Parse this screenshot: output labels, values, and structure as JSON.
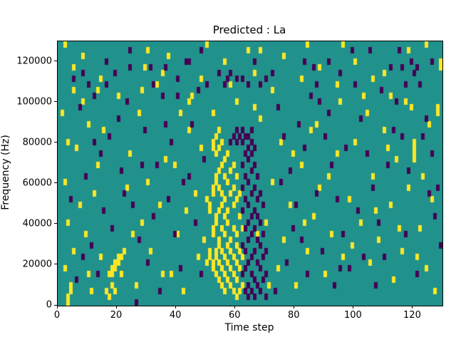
{
  "title": "Predicted : La",
  "chart_data": {
    "type": "heatmap",
    "title": "Predicted : La",
    "xlabel": "Time step",
    "ylabel": "Frequency (Hz)",
    "x_range": [
      0,
      130
    ],
    "y_range": [
      0,
      130000
    ],
    "x_ticks": [
      0,
      20,
      40,
      60,
      80,
      100,
      120
    ],
    "y_ticks": [
      0,
      20000,
      40000,
      60000,
      80000,
      100000,
      120000
    ],
    "grid_cols": 130,
    "grid_rows": 46,
    "legend": "none",
    "grid": false,
    "colors": {
      "background": "#21918c",
      "high": "#fde725",
      "low": "#440154"
    },
    "cells_high": [
      [
        3,
        0
      ],
      [
        3,
        1
      ],
      [
        4,
        2
      ],
      [
        4,
        3
      ],
      [
        2,
        6
      ],
      [
        5,
        9
      ],
      [
        3,
        14
      ],
      [
        2,
        21
      ],
      [
        3,
        28
      ],
      [
        9,
        12
      ],
      [
        12,
        19
      ],
      [
        13,
        24
      ],
      [
        10,
        31
      ],
      [
        8,
        35
      ],
      [
        6,
        27
      ],
      [
        14,
        8
      ],
      [
        11,
        2
      ],
      [
        7,
        17
      ],
      [
        1,
        33
      ],
      [
        5,
        41
      ],
      [
        10,
        5
      ],
      [
        15,
        30
      ],
      [
        13,
        37
      ],
      [
        16,
        2
      ],
      [
        17,
        5
      ],
      [
        18,
        5
      ],
      [
        18,
        6
      ],
      [
        19,
        6
      ],
      [
        19,
        7
      ],
      [
        20,
        7
      ],
      [
        20,
        8
      ],
      [
        21,
        5
      ],
      [
        21,
        8
      ],
      [
        18,
        3
      ],
      [
        22,
        9
      ],
      [
        17,
        1
      ],
      [
        19,
        2
      ],
      [
        26,
        3
      ],
      [
        28,
        14
      ],
      [
        30,
        21
      ],
      [
        24,
        26
      ],
      [
        27,
        33
      ],
      [
        31,
        9
      ],
      [
        34,
        17
      ],
      [
        36,
        25
      ],
      [
        38,
        5
      ],
      [
        40,
        12
      ],
      [
        42,
        2
      ],
      [
        44,
        30
      ],
      [
        46,
        19
      ],
      [
        33,
        38
      ],
      [
        29,
        41
      ],
      [
        25,
        12
      ],
      [
        35,
        5
      ],
      [
        39,
        24
      ],
      [
        43,
        16
      ],
      [
        47,
        8
      ],
      [
        23,
        20
      ],
      [
        45,
        36
      ],
      [
        48,
        27
      ],
      [
        41,
        33
      ],
      [
        49,
        11
      ],
      [
        50,
        7
      ],
      [
        50,
        18
      ],
      [
        51,
        8
      ],
      [
        51,
        9
      ],
      [
        51,
        16
      ],
      [
        51,
        17
      ],
      [
        52,
        6
      ],
      [
        52,
        7
      ],
      [
        52,
        12
      ],
      [
        52,
        13
      ],
      [
        52,
        19
      ],
      [
        52,
        20
      ],
      [
        52,
        27
      ],
      [
        52,
        28
      ],
      [
        53,
        5
      ],
      [
        53,
        8
      ],
      [
        53,
        9
      ],
      [
        53,
        14
      ],
      [
        53,
        15
      ],
      [
        53,
        21
      ],
      [
        53,
        22
      ],
      [
        53,
        26
      ],
      [
        53,
        29
      ],
      [
        54,
        4
      ],
      [
        54,
        7
      ],
      [
        54,
        10
      ],
      [
        54,
        11
      ],
      [
        54,
        16
      ],
      [
        54,
        20
      ],
      [
        54,
        23
      ],
      [
        54,
        27
      ],
      [
        54,
        30
      ],
      [
        55,
        3
      ],
      [
        55,
        6
      ],
      [
        55,
        9
      ],
      [
        55,
        13
      ],
      [
        55,
        17
      ],
      [
        55,
        19
      ],
      [
        55,
        24
      ],
      [
        55,
        28
      ],
      [
        56,
        2
      ],
      [
        56,
        5
      ],
      [
        56,
        8
      ],
      [
        56,
        12
      ],
      [
        56,
        15
      ],
      [
        56,
        18
      ],
      [
        56,
        22
      ],
      [
        56,
        25
      ],
      [
        57,
        4
      ],
      [
        57,
        7
      ],
      [
        57,
        10
      ],
      [
        57,
        14
      ],
      [
        57,
        16
      ],
      [
        57,
        21
      ],
      [
        57,
        26
      ],
      [
        58,
        3
      ],
      [
        58,
        6
      ],
      [
        58,
        9
      ],
      [
        58,
        11
      ],
      [
        58,
        19
      ],
      [
        58,
        23
      ],
      [
        59,
        2
      ],
      [
        59,
        5
      ],
      [
        59,
        8
      ],
      [
        59,
        13
      ],
      [
        59,
        17
      ],
      [
        59,
        20
      ],
      [
        59,
        24
      ],
      [
        60,
        1
      ],
      [
        60,
        4
      ],
      [
        60,
        7
      ],
      [
        60,
        10
      ],
      [
        60,
        12
      ],
      [
        60,
        18
      ],
      [
        60,
        22
      ],
      [
        61,
        2
      ],
      [
        61,
        6
      ],
      [
        61,
        9
      ],
      [
        61,
        15
      ],
      [
        61,
        19
      ],
      [
        62,
        3
      ],
      [
        62,
        8
      ],
      [
        62,
        13
      ],
      [
        68,
        32
      ],
      [
        70,
        14
      ],
      [
        72,
        21
      ],
      [
        74,
        6
      ],
      [
        75,
        28
      ],
      [
        76,
        11
      ],
      [
        78,
        17
      ],
      [
        80,
        3
      ],
      [
        82,
        24
      ],
      [
        84,
        9
      ],
      [
        85,
        30
      ],
      [
        86,
        15
      ],
      [
        88,
        20
      ],
      [
        90,
        5
      ],
      [
        92,
        12
      ],
      [
        94,
        26
      ],
      [
        95,
        35
      ],
      [
        96,
        8
      ],
      [
        98,
        18
      ],
      [
        100,
        28
      ],
      [
        102,
        14
      ],
      [
        104,
        33
      ],
      [
        105,
        7
      ],
      [
        106,
        22
      ],
      [
        108,
        11
      ],
      [
        110,
        30
      ],
      [
        112,
        17
      ],
      [
        113,
        4
      ],
      [
        114,
        25
      ],
      [
        116,
        9
      ],
      [
        118,
        20
      ],
      [
        119,
        34
      ],
      [
        120,
        25
      ],
      [
        120,
        26
      ],
      [
        120,
        27
      ],
      [
        120,
        28
      ],
      [
        122,
        13
      ],
      [
        124,
        6
      ],
      [
        125,
        31
      ],
      [
        126,
        18
      ],
      [
        128,
        33
      ],
      [
        128,
        34
      ],
      [
        129,
        41
      ],
      [
        129,
        42
      ],
      [
        127,
        2
      ],
      [
        123,
        22
      ],
      [
        66,
        34
      ],
      [
        71,
        3
      ],
      [
        79,
        26
      ],
      [
        83,
        14
      ],
      [
        87,
        31
      ],
      [
        91,
        22
      ],
      [
        99,
        10
      ],
      [
        103,
        36
      ],
      [
        107,
        16
      ],
      [
        111,
        27
      ],
      [
        115,
        13
      ],
      [
        117,
        35
      ],
      [
        121,
        8
      ],
      [
        67,
        12
      ],
      [
        35,
        40
      ],
      [
        37,
        43
      ],
      [
        48,
        39
      ],
      [
        56,
        42
      ],
      [
        58,
        38
      ],
      [
        64,
        44
      ],
      [
        66,
        40
      ],
      [
        72,
        37
      ],
      [
        76,
        43
      ],
      [
        82,
        39
      ],
      [
        88,
        41
      ],
      [
        94,
        38
      ],
      [
        100,
        42
      ],
      [
        106,
        39
      ],
      [
        112,
        36
      ],
      [
        118,
        44
      ],
      [
        20,
        36
      ],
      [
        14,
        39
      ],
      [
        8,
        43
      ],
      [
        28,
        37
      ],
      [
        44,
        35
      ],
      [
        52,
        33
      ],
      [
        60,
        35
      ],
      [
        68,
        44
      ],
      [
        5,
        37
      ],
      [
        96,
        45
      ],
      [
        110,
        40
      ],
      [
        124,
        45
      ],
      [
        2,
        45
      ],
      [
        30,
        44
      ],
      [
        84,
        45
      ],
      [
        50,
        45
      ]
    ],
    "cells_low": [
      [
        62,
        5
      ],
      [
        62,
        10
      ],
      [
        62,
        16
      ],
      [
        62,
        20
      ],
      [
        62,
        24
      ],
      [
        63,
        2
      ],
      [
        63,
        6
      ],
      [
        63,
        9
      ],
      [
        63,
        13
      ],
      [
        63,
        18
      ],
      [
        63,
        22
      ],
      [
        63,
        26
      ],
      [
        64,
        1
      ],
      [
        64,
        3
      ],
      [
        64,
        7
      ],
      [
        64,
        11
      ],
      [
        64,
        14
      ],
      [
        64,
        17
      ],
      [
        64,
        21
      ],
      [
        64,
        25
      ],
      [
        64,
        27
      ],
      [
        65,
        2
      ],
      [
        65,
        5
      ],
      [
        65,
        8
      ],
      [
        65,
        12
      ],
      [
        65,
        15
      ],
      [
        65,
        19
      ],
      [
        65,
        23
      ],
      [
        65,
        26
      ],
      [
        65,
        28
      ],
      [
        66,
        1
      ],
      [
        66,
        4
      ],
      [
        66,
        9
      ],
      [
        66,
        13
      ],
      [
        66,
        16
      ],
      [
        66,
        20
      ],
      [
        66,
        24
      ],
      [
        66,
        27
      ],
      [
        67,
        3
      ],
      [
        67,
        7
      ],
      [
        67,
        11
      ],
      [
        67,
        15
      ],
      [
        67,
        18
      ],
      [
        67,
        22
      ],
      [
        68,
        2
      ],
      [
        68,
        6
      ],
      [
        68,
        10
      ],
      [
        68,
        14
      ],
      [
        68,
        19
      ],
      [
        69,
        4
      ],
      [
        69,
        8
      ],
      [
        69,
        12
      ],
      [
        69,
        17
      ],
      [
        70,
        1
      ],
      [
        70,
        5
      ],
      [
        70,
        9
      ],
      [
        58,
        28
      ],
      [
        59,
        29
      ],
      [
        60,
        28
      ],
      [
        60,
        30
      ],
      [
        61,
        29
      ],
      [
        62,
        28
      ],
      [
        62,
        30
      ],
      [
        63,
        29
      ],
      [
        64,
        29
      ],
      [
        65,
        30
      ],
      [
        5,
        39
      ],
      [
        10,
        38
      ],
      [
        7,
        34
      ],
      [
        12,
        28
      ],
      [
        9,
        22
      ],
      [
        15,
        16
      ],
      [
        11,
        10
      ],
      [
        6,
        4
      ],
      [
        19,
        40
      ],
      [
        23,
        35
      ],
      [
        17,
        29
      ],
      [
        21,
        23
      ],
      [
        25,
        17
      ],
      [
        27,
        11
      ],
      [
        13,
        5
      ],
      [
        31,
        41
      ],
      [
        35,
        36
      ],
      [
        29,
        30
      ],
      [
        33,
        24
      ],
      [
        37,
        18
      ],
      [
        39,
        12
      ],
      [
        41,
        6
      ],
      [
        43,
        42
      ],
      [
        47,
        37
      ],
      [
        45,
        31
      ],
      [
        49,
        25
      ],
      [
        26,
        0
      ],
      [
        30,
        7
      ],
      [
        34,
        2
      ],
      [
        38,
        28
      ],
      [
        42,
        21
      ],
      [
        46,
        14
      ],
      [
        22,
        19
      ],
      [
        18,
        13
      ],
      [
        4,
        18
      ],
      [
        8,
        8
      ],
      [
        14,
        26
      ],
      [
        20,
        32
      ],
      [
        28,
        24
      ],
      [
        36,
        31
      ],
      [
        44,
        22
      ],
      [
        48,
        5
      ],
      [
        32,
        15
      ],
      [
        40,
        36
      ],
      [
        24,
        41
      ],
      [
        16,
        38
      ],
      [
        72,
        40
      ],
      [
        74,
        34
      ],
      [
        76,
        29
      ],
      [
        78,
        23
      ],
      [
        80,
        17
      ],
      [
        82,
        11
      ],
      [
        84,
        5
      ],
      [
        86,
        41
      ],
      [
        88,
        35
      ],
      [
        90,
        29
      ],
      [
        92,
        24
      ],
      [
        94,
        18
      ],
      [
        96,
        12
      ],
      [
        98,
        6
      ],
      [
        100,
        38
      ],
      [
        102,
        32
      ],
      [
        104,
        26
      ],
      [
        106,
        20
      ],
      [
        108,
        14
      ],
      [
        110,
        8
      ],
      [
        112,
        41
      ],
      [
        114,
        35
      ],
      [
        116,
        29
      ],
      [
        118,
        23
      ],
      [
        122,
        38
      ],
      [
        124,
        32
      ],
      [
        126,
        26
      ],
      [
        128,
        20
      ],
      [
        73,
        2
      ],
      [
        77,
        7
      ],
      [
        81,
        31
      ],
      [
        85,
        36
      ],
      [
        89,
        9
      ],
      [
        93,
        3
      ],
      [
        97,
        27
      ],
      [
        101,
        16
      ],
      [
        105,
        44
      ],
      [
        109,
        37
      ],
      [
        113,
        30
      ],
      [
        117,
        12
      ],
      [
        121,
        5
      ],
      [
        125,
        19
      ],
      [
        129,
        10
      ],
      [
        119,
        42
      ],
      [
        115,
        44
      ],
      [
        111,
        24
      ],
      [
        107,
        3
      ],
      [
        103,
        8
      ],
      [
        95,
        6
      ],
      [
        91,
        33
      ],
      [
        87,
        19
      ],
      [
        83,
        27
      ],
      [
        79,
        13
      ],
      [
        75,
        21
      ],
      [
        127,
        15
      ],
      [
        123,
        29
      ],
      [
        121,
        41
      ],
      [
        117,
        38
      ],
      [
        36,
        41
      ],
      [
        40,
        39
      ],
      [
        44,
        42
      ],
      [
        50,
        38
      ],
      [
        54,
        40
      ],
      [
        57,
        39
      ],
      [
        62,
        39
      ],
      [
        66,
        42
      ],
      [
        70,
        39
      ],
      [
        83,
        42
      ],
      [
        87,
        38
      ],
      [
        91,
        42
      ],
      [
        95,
        40
      ],
      [
        99,
        44
      ],
      [
        116,
        41
      ],
      [
        120,
        40
      ],
      [
        126,
        42
      ],
      [
        16,
        42
      ],
      [
        24,
        44
      ],
      [
        32,
        38
      ],
      [
        48,
        44
      ],
      [
        12,
        36
      ],
      [
        8,
        40
      ],
      [
        64,
        38
      ],
      [
        68,
        38
      ],
      [
        60,
        39
      ],
      [
        58,
        40
      ],
      [
        56,
        38
      ]
    ]
  }
}
